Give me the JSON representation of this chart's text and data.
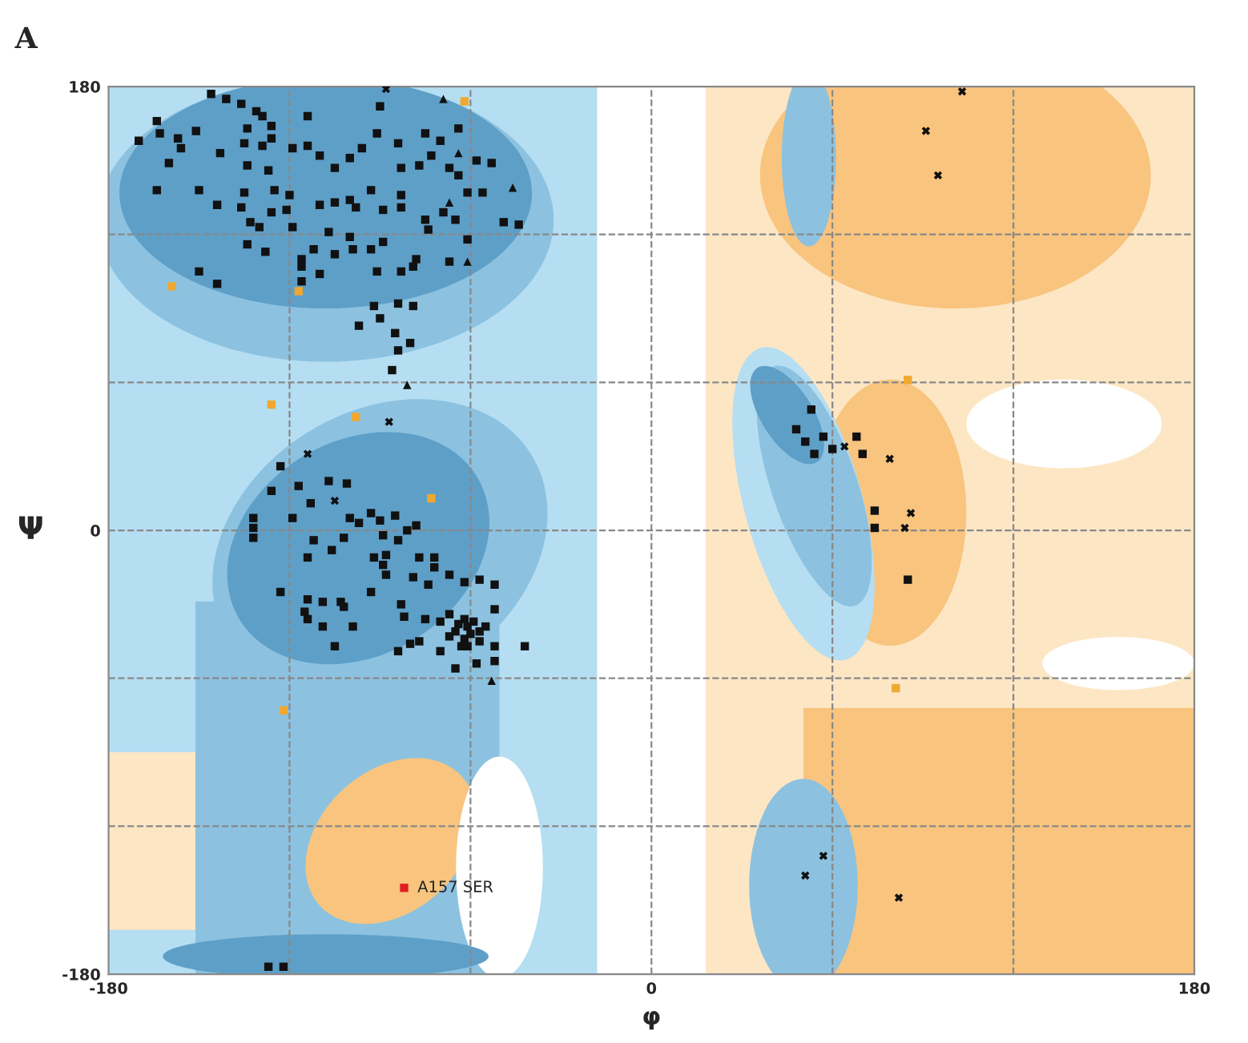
{
  "chart_data": {
    "type": "scatter",
    "title": "A",
    "xlabel": "φ",
    "ylabel": "Ψ",
    "xlim": [
      -180,
      180
    ],
    "ylim": [
      -180,
      180
    ],
    "xticks": [
      -180,
      {
        "value": -120,
        "label": null
      },
      {
        "value": -60,
        "label": null
      },
      0,
      {
        "value": 60,
        "label": null
      },
      {
        "value": 120,
        "label": null
      },
      180
    ],
    "yticks": [
      -180,
      {
        "value": -120,
        "label": null
      },
      {
        "value": -60,
        "label": null
      },
      0,
      {
        "value": 60,
        "label": null
      },
      {
        "value": 120,
        "label": null
      },
      180
    ],
    "grid": true,
    "line_style": "dashed",
    "annotations": [
      {
        "text": "A157 SER",
        "x": -82,
        "y": -145
      }
    ],
    "series": [
      {
        "color": "#111111",
        "marker": "square",
        "x": [
          -146,
          -141,
          -136,
          -131,
          -129,
          -126,
          -164,
          -170,
          -163,
          -157,
          -151,
          -156,
          -160,
          -143,
          -134,
          -135,
          -129,
          -126,
          -134,
          -127,
          -119,
          -114,
          -114,
          -110,
          -105,
          -100,
          -96,
          -90,
          -91,
          -84,
          -83,
          -77,
          -75,
          -70,
          -64,
          -73,
          -67,
          -64,
          -58,
          -53,
          -61,
          -56,
          -164,
          -150,
          -144,
          -136,
          -135,
          -125,
          -120,
          -126,
          -121,
          -133,
          -130,
          -119,
          -110,
          -105,
          -100,
          -98,
          -93,
          -89,
          -83,
          -83,
          -75,
          -74,
          -69,
          -65,
          -49,
          -44,
          -107,
          -100,
          -93,
          -89,
          -134,
          -128,
          -116,
          -116,
          -110,
          -112,
          -105,
          -99,
          -91,
          -83,
          -79,
          -78,
          -67,
          -61,
          -150,
          -144,
          -116,
          -92,
          -84,
          -79,
          -97,
          -90,
          -85,
          -80,
          -84,
          -86,
          -123,
          -126,
          -117,
          -107,
          -101,
          -113,
          -132,
          -132,
          -132,
          -119,
          -100,
          -97,
          -93,
          -90,
          -85,
          -112,
          -102,
          -114,
          -106,
          -89,
          -84,
          -81,
          -78,
          -92,
          -88,
          -89,
          -88,
          -77,
          -72,
          -79,
          -74,
          -72,
          -67,
          -62,
          -57,
          -52,
          -123,
          -114,
          -109,
          -103,
          -102,
          -115,
          -114,
          -109,
          -99,
          -105,
          -93,
          -83,
          -82,
          -84,
          -80,
          -77,
          -75,
          -70,
          -67,
          -62,
          -65,
          -60,
          -55,
          -57,
          -63,
          -70,
          -52,
          -52,
          -58,
          -65,
          -52,
          -42,
          -64,
          -61,
          -62,
          -59,
          -67,
          -57,
          -61,
          53,
          48,
          51,
          54,
          57,
          60,
          68,
          70,
          74,
          74,
          85,
          -127,
          -122
        ],
        "values": [
          177,
          175,
          173,
          170,
          168,
          164,
          166,
          158,
          161,
          159,
          162,
          155,
          149,
          153,
          163,
          157,
          156,
          159,
          148,
          146,
          155,
          168,
          156,
          152,
          147,
          151,
          155,
          172,
          161,
          157,
          147,
          148,
          161,
          158,
          163,
          152,
          147,
          144,
          150,
          149,
          137,
          137,
          138,
          138,
          132,
          131,
          137,
          138,
          136,
          129,
          130,
          125,
          123,
          123,
          132,
          133,
          134,
          131,
          138,
          130,
          136,
          131,
          126,
          122,
          129,
          126,
          125,
          124,
          121,
          119,
          114,
          117,
          116,
          113,
          110,
          107,
          104,
          114,
          112,
          114,
          105,
          105,
          107,
          110,
          109,
          118,
          105,
          100,
          101,
          91,
          92,
          91,
          83,
          86,
          80,
          76,
          73,
          65,
          26,
          16,
          18,
          20,
          19,
          11,
          5,
          1,
          -3,
          5,
          5,
          3,
          7,
          4,
          6,
          -4,
          -3,
          -11,
          -8,
          -2,
          -4,
          0,
          2,
          -11,
          -10,
          -14,
          -18,
          -11,
          -11,
          -19,
          -22,
          -15,
          -18,
          -21,
          -20,
          -22,
          -25,
          -28,
          -29,
          -29,
          -31,
          -33,
          -36,
          -39,
          -39,
          -47,
          -25,
          -30,
          -35,
          -49,
          -46,
          -45,
          -36,
          -37,
          -34,
          -36,
          -41,
          -42,
          -39,
          -45,
          -47,
          -49,
          -32,
          -47,
          -54,
          -56,
          -53,
          -47,
          -38,
          -39,
          -44,
          -37,
          -43,
          -41,
          -47,
          49,
          41,
          36,
          31,
          38,
          33,
          38,
          31,
          8,
          1,
          -20,
          -177,
          -177
        ]
      },
      {
        "color": "#111111",
        "marker": "triangle",
        "x": [
          -69,
          -46,
          -61,
          -81,
          -64,
          -67,
          -53
        ],
        "values": [
          175,
          139,
          109,
          59,
          153,
          133,
          -61
        ]
      },
      {
        "color": "#111111",
        "marker": "cross",
        "x": [
          -88,
          -87,
          -114,
          -105,
          103,
          91,
          95,
          64,
          79,
          86,
          84,
          57,
          51,
          82
        ],
        "values": [
          179,
          44,
          31,
          12,
          178,
          162,
          144,
          34,
          29,
          7,
          1,
          -132,
          -140,
          -149
        ]
      },
      {
        "color": "#f0a830",
        "marker": "square",
        "x": [
          -62,
          -159,
          -117,
          -126,
          -98,
          -73,
          -122,
          81,
          85
        ],
        "values": [
          174,
          99,
          97,
          51,
          46,
          13,
          -73,
          -64,
          61
        ]
      },
      {
        "color": "#e02020",
        "marker": "square",
        "x": [
          -82
        ],
        "values": [
          -145
        ]
      }
    ]
  }
}
